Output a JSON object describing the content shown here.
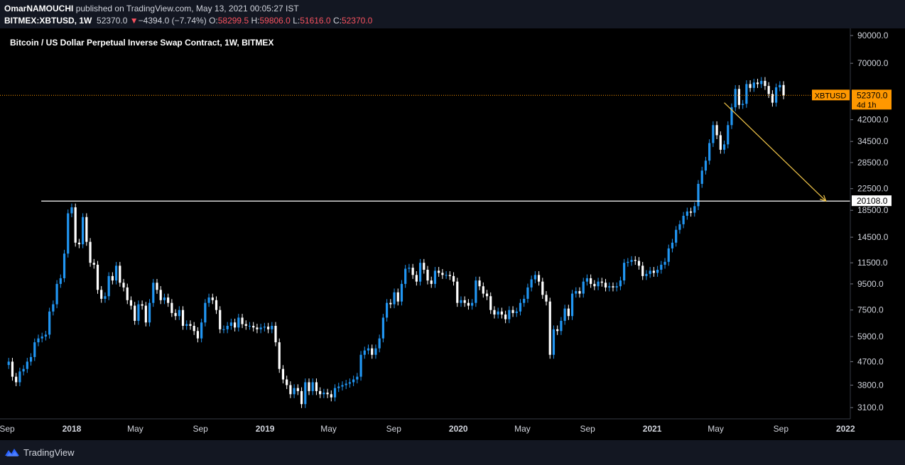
{
  "header": {
    "author": "OmarNAMOUCHI",
    "published_text": "published on TradingView.com, May 13, 2021 00:05:27 IST",
    "symbol": "BITMEX:XBTUSD, 1W",
    "last": "52370.0",
    "change": "−4394.0 (−7.74%)",
    "open_label": "O:",
    "open": "58299.5",
    "high_label": "H:",
    "high": "59806.0",
    "low_label": "L:",
    "low": "51616.0",
    "close_label": "C:",
    "close": "52370.0"
  },
  "brand": {
    "name": "TradingView"
  },
  "colors": {
    "up": "#2196f3",
    "down": "#ffffff",
    "price_line": "#ff9800",
    "arrow": "#f3c74a",
    "level": "#ffffff"
  },
  "chart_data": {
    "type": "candlestick",
    "title": "Bitcoin / US Dollar Perpetual Inverse Swap Contract, 1W, BITMEX",
    "y_scale": "log",
    "ylim": [
      2800,
      96000
    ],
    "y_ticks": [
      90000,
      70000,
      42000,
      34500,
      28500,
      22500,
      18500,
      14500,
      11500,
      9500,
      7500,
      5900,
      4700,
      3800,
      3100
    ],
    "y_tick_labels": [
      "90000.0",
      "70000.0",
      "42000.0",
      "34500.0",
      "28500.0",
      "22500.0",
      "18500.0",
      "14500.0",
      "11500.0",
      "9500.0",
      "7500.0",
      "5900.0",
      "4700.0",
      "3800.0",
      "3100.0"
    ],
    "x_ticks": [
      {
        "label": "Sep",
        "date": "2017-09-01"
      },
      {
        "label": "2018",
        "date": "2018-01-01"
      },
      {
        "label": "May",
        "date": "2018-05-01"
      },
      {
        "label": "Sep",
        "date": "2018-09-01"
      },
      {
        "label": "2019",
        "date": "2019-01-01"
      },
      {
        "label": "May",
        "date": "2019-05-01"
      },
      {
        "label": "Sep",
        "date": "2019-09-01"
      },
      {
        "label": "2020",
        "date": "2020-01-01"
      },
      {
        "label": "May",
        "date": "2020-05-01"
      },
      {
        "label": "Sep",
        "date": "2020-09-01"
      },
      {
        "label": "2021",
        "date": "2021-01-01"
      },
      {
        "label": "May",
        "date": "2021-05-01"
      },
      {
        "label": "Sep",
        "date": "2021-09-01"
      },
      {
        "label": "2022",
        "date": "2022-01-01"
      }
    ],
    "xlim": [
      "2017-09-01",
      "2022-01-10"
    ],
    "last_price": {
      "value": 52370,
      "label": "52370.0",
      "symbol": "XBTUSD",
      "countdown": "4d 1h"
    },
    "horizontal_level": {
      "value": 20108,
      "label": "20108.0",
      "from": "2017-12-04"
    },
    "arrow": {
      "from": {
        "date": "2021-05-17",
        "value": 49000
      },
      "to": {
        "date": "2021-11-25",
        "value": 20108
      }
    },
    "weekly_close": [
      4700,
      4100,
      3900,
      4300,
      4400,
      4700,
      4900,
      5600,
      5800,
      5900,
      6000,
      7400,
      7900,
      9500,
      10000,
      12500,
      18000,
      19000,
      13800,
      13600,
      17400,
      13900,
      11500,
      11300,
      9000,
      8300,
      8500,
      10200,
      9800,
      11200,
      9600,
      9200,
      8200,
      7800,
      6800,
      7900,
      7800,
      6700,
      8000,
      9600,
      9000,
      8200,
      8400,
      8000,
      7300,
      7100,
      7500,
      6500,
      6600,
      6500,
      6200,
      5800,
      6700,
      8000,
      8400,
      8200,
      7500,
      6300,
      6300,
      6500,
      6700,
      6400,
      7000,
      6600,
      6500,
      6500,
      6400,
      6300,
      6400,
      6450,
      6300,
      6500,
      5600,
      4400,
      4000,
      3800,
      3500,
      3700,
      3600,
      3200,
      3900,
      3600,
      3900,
      3600,
      3500,
      3550,
      3500,
      3400,
      3700,
      3750,
      3800,
      3850,
      3900,
      4000,
      4100,
      5000,
      5200,
      5300,
      5000,
      5300,
      5800,
      7000,
      8000,
      7900,
      8800,
      8100,
      9500,
      10900,
      11000,
      10300,
      9700,
      11500,
      10800,
      9800,
      9500,
      10700,
      10500,
      10300,
      10300,
      10200,
      9700,
      8000,
      8200,
      8000,
      7800,
      8000,
      9800,
      9300,
      8700,
      8500,
      7500,
      7200,
      7400,
      7200,
      6900,
      7500,
      7300,
      7400,
      8000,
      8300,
      9200,
      9900,
      10300,
      9700,
      8600,
      8100,
      5000,
      6300,
      6200,
      6800,
      7600,
      7100,
      8700,
      8900,
      8700,
      9700,
      10000,
      9500,
      9300,
      9700,
      9600,
      9200,
      9300,
      9200,
      9300,
      9800,
      11500,
      11600,
      11800,
      11700,
      11200,
      10200,
      10400,
      10700,
      10500,
      10800,
      11300,
      11600,
      13100,
      13800,
      15500,
      16300,
      17600,
      18300,
      18100,
      19200,
      23500,
      26500,
      29000,
      34000,
      40000,
      36500,
      32000,
      33600,
      40000,
      47000,
      55500,
      48000,
      48500,
      58000,
      56000,
      58800,
      58000,
      59700,
      57000,
      53000,
      49000,
      56300,
      57500,
      52370
    ]
  }
}
